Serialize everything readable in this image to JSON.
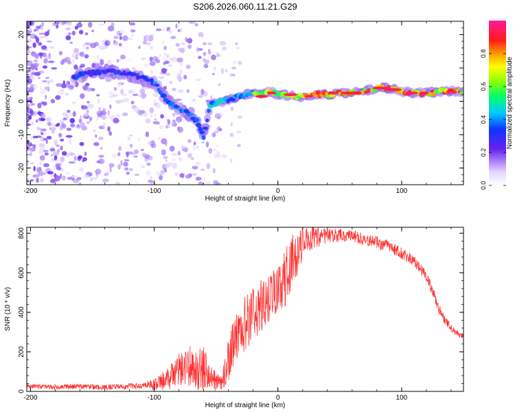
{
  "title": "S206.2026.060.11.21.G29",
  "chart_data": [
    {
      "type": "heatmap",
      "xlabel": "Height of straight line (km)",
      "ylabel": "Frequency (Hz)",
      "xlim": [
        -203,
        150
      ],
      "ylim": [
        -25,
        24
      ],
      "xticks": [
        -200,
        -100,
        0,
        100
      ],
      "xtick_labels": [
        "-200",
        "-100",
        "0",
        "100"
      ],
      "yticks": [
        -20,
        -10,
        0,
        10,
        20
      ],
      "ytick_labels": [
        "-20",
        "-10",
        "0",
        "10",
        "20"
      ],
      "ridge": {
        "x": [
          -165,
          -150,
          -140,
          -130,
          -120,
          -110,
          -100,
          -95,
          -90,
          -85,
          -80,
          -75,
          -70,
          -65,
          -60,
          -55,
          -50,
          -45,
          -40,
          -35,
          -30,
          -25,
          -20,
          -15,
          -10,
          -5,
          0,
          5,
          10,
          20,
          30,
          40,
          50,
          60,
          70,
          80,
          90,
          100,
          110,
          120,
          130,
          150
        ],
        "y": [
          7.5,
          8.5,
          9,
          8.5,
          8,
          7,
          5.5,
          3,
          0.5,
          -1,
          -2,
          -3,
          -4,
          -6,
          -11,
          -1,
          -1,
          0,
          0.5,
          1,
          1.5,
          2,
          2.5,
          2,
          2.5,
          3,
          2,
          2,
          1.5,
          1.5,
          2,
          2,
          2.5,
          2.5,
          3,
          4,
          4,
          3,
          2.5,
          2.5,
          3,
          3
        ]
      },
      "colorbar": {
        "label": "Normalized spectral amplitude",
        "range": [
          0,
          1
        ],
        "ticks": [
          0.0,
          0.2,
          0.4,
          0.6,
          0.8
        ],
        "tick_labels": [
          "0.0",
          "0.2",
          "0.4",
          "0.6",
          "0.8"
        ]
      }
    },
    {
      "type": "line",
      "xlabel": "Height of straight line (km)",
      "ylabel": "SNR (10 * v/v)",
      "xlim": [
        -203,
        150
      ],
      "ylim": [
        0,
        830
      ],
      "xticks": [
        -200,
        -100,
        0,
        100
      ],
      "xtick_labels": [
        "-200",
        "-100",
        "0",
        "100"
      ],
      "yticks": [
        0,
        200,
        400,
        600,
        800
      ],
      "ytick_labels": [
        "0",
        "200",
        "400",
        "600",
        "800"
      ],
      "color": "#ff3333",
      "envelope": {
        "x": [
          -203,
          -180,
          -160,
          -140,
          -120,
          -110,
          -100,
          -90,
          -80,
          -70,
          -60,
          -55,
          -50,
          -45,
          -40,
          -35,
          -30,
          -25,
          -20,
          -15,
          -10,
          -5,
          0,
          5,
          10,
          15,
          20,
          30,
          40,
          50,
          60,
          70,
          80,
          90,
          100,
          110,
          120,
          125,
          130,
          135,
          140,
          145,
          150
        ],
        "y": [
          25,
          22,
          25,
          22,
          25,
          28,
          35,
          60,
          110,
          130,
          100,
          80,
          40,
          60,
          150,
          250,
          320,
          350,
          380,
          420,
          450,
          480,
          520,
          560,
          620,
          700,
          760,
          780,
          790,
          790,
          785,
          770,
          755,
          730,
          700,
          660,
          580,
          510,
          420,
          360,
          320,
          290,
          280
        ]
      },
      "noise": {
        "x": [
          -203,
          -110,
          -100,
          -60,
          -55,
          -45,
          -40,
          -20,
          -10,
          0,
          10,
          20,
          40,
          100,
          130,
          150
        ],
        "amplitude": [
          12,
          15,
          30,
          130,
          60,
          50,
          120,
          150,
          130,
          120,
          160,
          90,
          35,
          30,
          25,
          15
        ]
      }
    }
  ]
}
